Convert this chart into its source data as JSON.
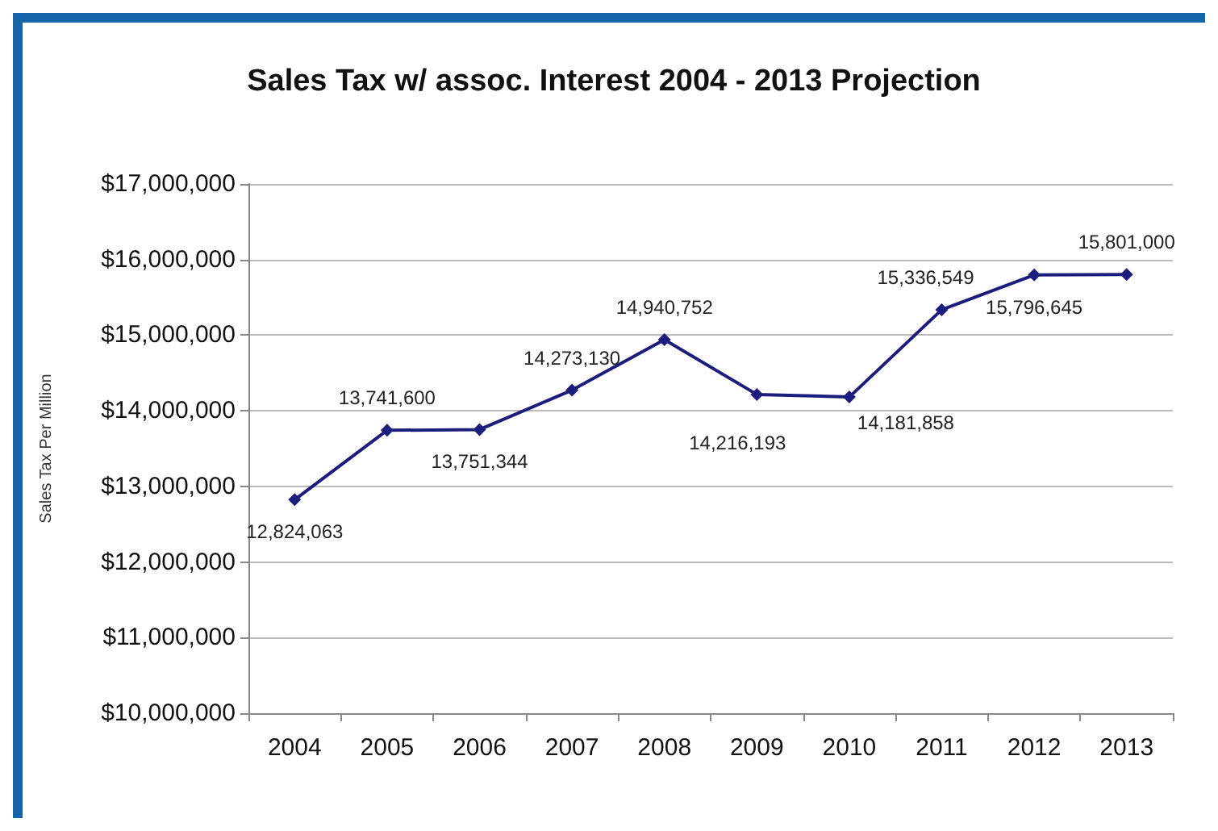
{
  "chart_data": {
    "type": "line",
    "title": "Sales Tax w/ assoc. Interest 2004 - 2013 Projection",
    "ylabel": "Sales Tax Per Million",
    "categories": [
      "2004",
      "2005",
      "2006",
      "2007",
      "2008",
      "2009",
      "2010",
      "2011",
      "2012",
      "2013"
    ],
    "series": [
      {
        "color": "#1c1c7c",
        "values": [
          12824063,
          13741600,
          13751344,
          14273130,
          14940752,
          14216193,
          14181858,
          15336549,
          15796645,
          15801000
        ],
        "value_labels": [
          "12,824,063",
          "13,741,600",
          "13,751,344",
          "14,273,130",
          "14,940,752",
          "14,216,193",
          "14,181,858",
          "15,336,549",
          "15,796,645",
          "15,801,000"
        ]
      }
    ],
    "ylim": [
      10000000,
      17000000
    ],
    "yticks": [
      {
        "value": 10000000,
        "label": "$10,000,000"
      },
      {
        "value": 11000000,
        "label": "$11,000,000"
      },
      {
        "value": 12000000,
        "label": "$12,000,000"
      },
      {
        "value": 13000000,
        "label": "$13,000,000"
      },
      {
        "value": 14000000,
        "label": "$14,000,000"
      },
      {
        "value": 15000000,
        "label": "$15,000,000"
      },
      {
        "value": 16000000,
        "label": "$16,000,000"
      },
      {
        "value": 17000000,
        "label": "$17,000,000"
      }
    ],
    "grid": "y",
    "marker": "diamond",
    "line_style": "solid"
  }
}
